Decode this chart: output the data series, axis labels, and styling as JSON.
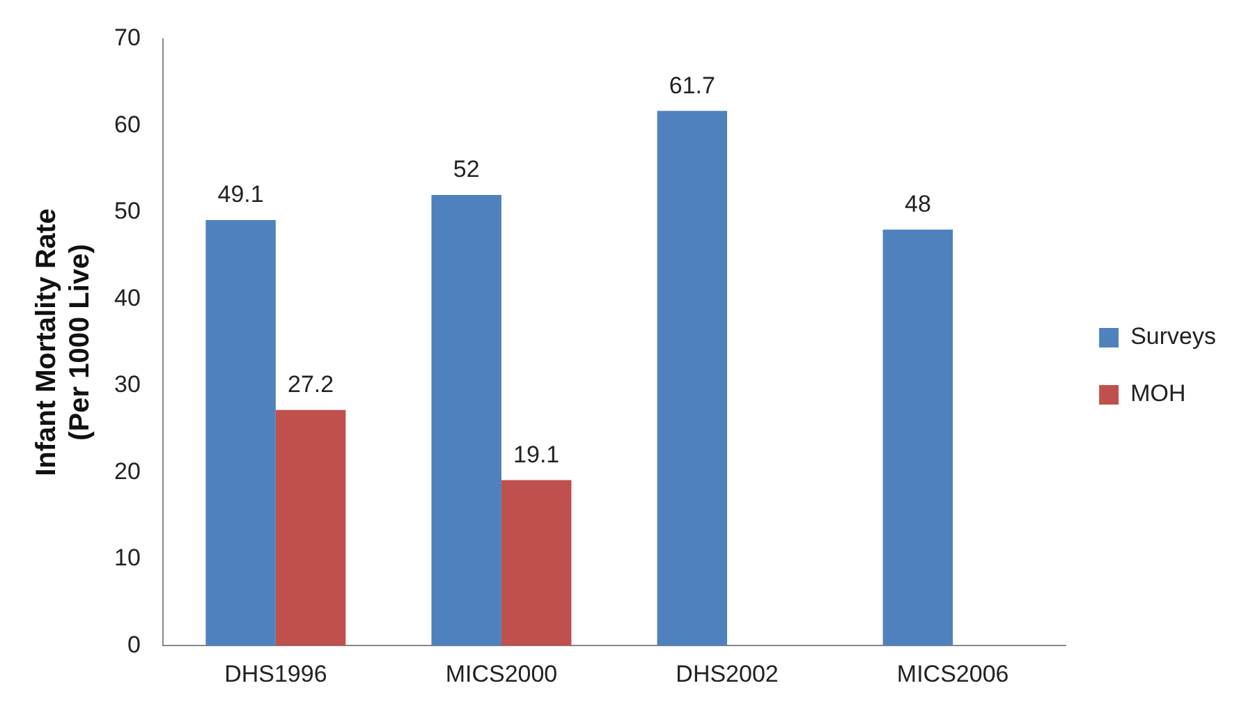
{
  "chart_data": {
    "type": "bar",
    "ylabel": "Infant Mortality Rate\n(Per 1000 Live)",
    "categories": [
      "DHS1996",
      "MICS2000",
      "DHS2002",
      "MICS2006"
    ],
    "series": [
      {
        "name": "Surveys",
        "color": "#4f81bd",
        "values": [
          49.1,
          52,
          61.7,
          48
        ]
      },
      {
        "name": "MOH",
        "color": "#c0504d",
        "values": [
          27.2,
          19.1,
          null,
          null
        ]
      }
    ],
    "ylim": [
      0,
      70
    ],
    "yticks": [
      0,
      10,
      20,
      30,
      40,
      50,
      60,
      70
    ],
    "grid": false,
    "legend": "right",
    "data_labels": true
  }
}
